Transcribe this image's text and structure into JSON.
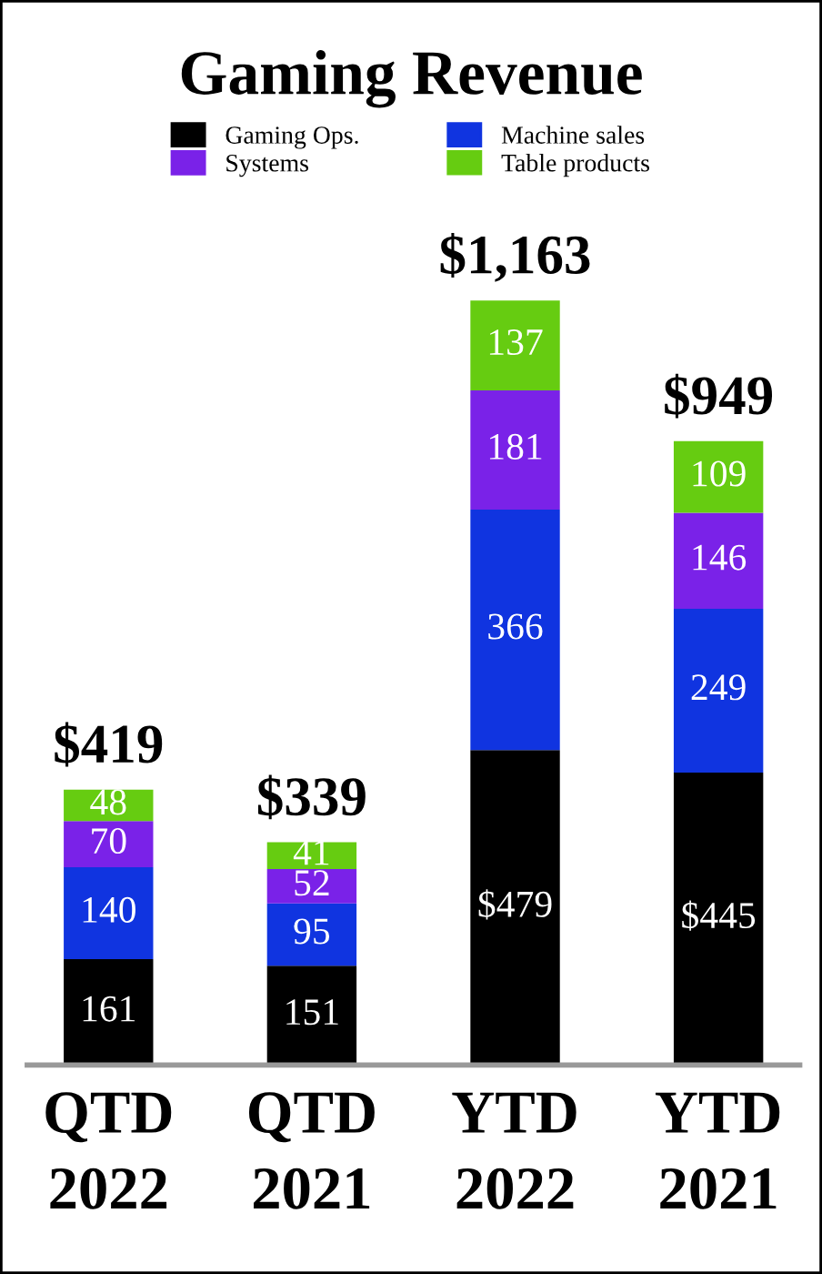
{
  "chart_data": {
    "type": "bar",
    "title": "Gaming Revenue",
    "stacked": true,
    "legend": "top",
    "tick_labels": "x",
    "grid": false,
    "categories": [
      "QTD\n2022",
      "QTD\n2021",
      "YTD\n2022",
      "YTD\n2021"
    ],
    "series": [
      {
        "name": "Gaming Ops.",
        "color": "#000000",
        "values": [
          161,
          151,
          479,
          445
        ],
        "value_labels": [
          "161",
          "151",
          "$479",
          "$445"
        ]
      },
      {
        "name": "Machine sales",
        "color": "#1034e0",
        "values": [
          140,
          95,
          366,
          249
        ],
        "value_labels": [
          "140",
          "95",
          "366",
          "249"
        ]
      },
      {
        "name": "Systems",
        "color": "#7a22e8",
        "values": [
          70,
          52,
          181,
          146
        ],
        "value_labels": [
          "70",
          "52",
          "181",
          "146"
        ]
      },
      {
        "name": "Table products",
        "color": "#66cc11",
        "values": [
          48,
          41,
          137,
          109
        ],
        "value_labels": [
          "48",
          "41",
          "137",
          "109"
        ]
      }
    ],
    "totals": [
      "$419",
      "$339",
      "$1,163",
      "$949"
    ]
  }
}
